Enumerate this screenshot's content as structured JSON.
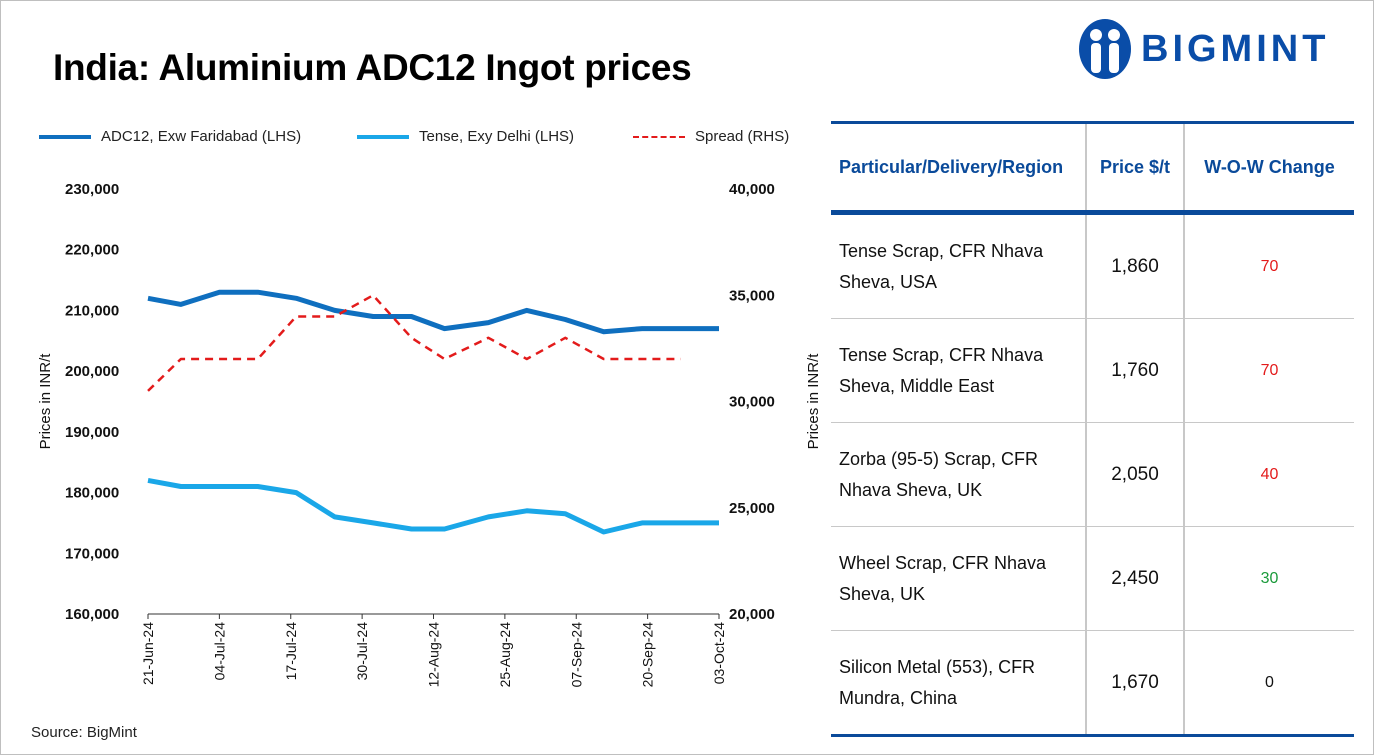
{
  "title": "India: Aluminium ADC12 Ingot prices",
  "logo": {
    "text": "BIGMINT",
    "color": "#0a4da8"
  },
  "source": "Source: BigMint",
  "chart_data": {
    "type": "line",
    "title": "India: Aluminium ADC12 Ingot prices",
    "ylabel": "Prices in INR/t",
    "y2label": "Prices in INR/t",
    "ylim": [
      160000,
      230000
    ],
    "y2lim": [
      20000,
      40000
    ],
    "yticks": [
      "230,000",
      "220,000",
      "210,000",
      "200,000",
      "190,000",
      "180,000",
      "170,000",
      "160,000"
    ],
    "y2ticks": [
      "40,000",
      "35,000",
      "30,000",
      "25,000",
      "20,000"
    ],
    "xticks": [
      "21-Jun-24",
      "04-Jul-24",
      "17-Jul-24",
      "30-Jul-24",
      "12-Aug-24",
      "25-Aug-24",
      "07-Sep-24",
      "20-Sep-24",
      "03-Oct-24"
    ],
    "x": [
      "21-Jun-24",
      "27-Jun-24",
      "04-Jul-24",
      "11-Jul-24",
      "18-Jul-24",
      "25-Jul-24",
      "01-Aug-24",
      "08-Aug-24",
      "14-Aug-24",
      "22-Aug-24",
      "29-Aug-24",
      "05-Sep-24",
      "12-Sep-24",
      "19-Sep-24",
      "26-Sep-24",
      "03-Oct-24"
    ],
    "legend_position": "top",
    "grid": false,
    "series": [
      {
        "name": "ADC12, Exw Faridabad (LHS)",
        "axis": "left",
        "color": "#0f6fbf",
        "style": "solid",
        "values": [
          212000,
          211000,
          213000,
          213000,
          212000,
          210000,
          209000,
          209000,
          207000,
          208000,
          210000,
          208500,
          206500,
          207000,
          207000,
          207000
        ]
      },
      {
        "name": "Tense, Exy Delhi (LHS)",
        "axis": "left",
        "color": "#1aa7e8",
        "style": "solid",
        "values": [
          182000,
          181000,
          181000,
          181000,
          180000,
          176000,
          175000,
          174000,
          174000,
          176000,
          177000,
          176500,
          173500,
          175000,
          175000,
          175000
        ]
      },
      {
        "name": "Spread (RHS)",
        "axis": "right",
        "color": "#e31b1b",
        "style": "dashed",
        "values": [
          30500,
          32000,
          32000,
          32000,
          34000,
          34000,
          35000,
          33000,
          32000,
          33000,
          32000,
          33000,
          32000,
          32000,
          32000,
          null
        ]
      }
    ]
  },
  "table": {
    "headers": [
      "Particular/Delivery/Region",
      "Price $/t",
      "W-O-W Change"
    ],
    "header_color": "#0a4a9a",
    "rows": [
      {
        "particular": " Tense Scrap, CFR Nhava Sheva, USA",
        "price": "1,860",
        "change": "70",
        "change_color": "#e31b1b"
      },
      {
        "particular": "Tense Scrap, CFR Nhava Sheva, Middle East",
        "price": "1,760",
        "change": "70",
        "change_color": "#e31b1b"
      },
      {
        "particular": "Zorba (95-5) Scrap, CFR Nhava Sheva, UK",
        "price": "2,050",
        "change": "40",
        "change_color": "#e31b1b"
      },
      {
        "particular": "Wheel Scrap, CFR Nhava Sheva, UK",
        "price": "2,450",
        "change": "30",
        "change_color": "#1a9a3a"
      },
      {
        "particular": "Silicon Metal (553), CFR Mundra, China",
        "price": "1,670",
        "change": "0",
        "change_color": "#111111"
      }
    ]
  }
}
